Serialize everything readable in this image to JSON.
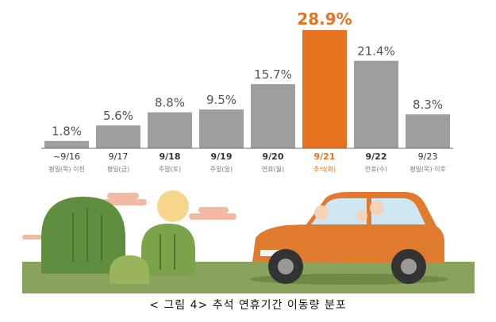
{
  "caption": "< 그림 4> 추석 연휴기간 이동량 분포",
  "colors": {
    "bar": "#9e9e9e",
    "highlight": "#e8731e",
    "pct_text": "#555555",
    "label_text": "#333333",
    "sub_text": "#777777",
    "highlight_text": "#e8731e",
    "baseline": "#6b6b6b"
  },
  "chart_data": {
    "type": "bar",
    "categories": [
      "~9/16",
      "9/17",
      "9/18",
      "9/19",
      "9/20",
      "9/21",
      "9/22",
      "9/23"
    ],
    "sublabels": [
      "평일(목) 이전",
      "평일(금)",
      "주말(토)",
      "주말(일)",
      "연휴(월)",
      "추석(화)",
      "연휴(수)",
      "평일(목) 이후"
    ],
    "values": [
      1.8,
      5.6,
      8.8,
      9.5,
      15.7,
      28.9,
      21.4,
      8.3
    ],
    "value_labels": [
      "1.8%",
      "5.6%",
      "8.8%",
      "9.5%",
      "15.7%",
      "28.9%",
      "21.4%",
      "8.3%"
    ],
    "highlight_index": 5,
    "bold_labels": [
      false,
      false,
      true,
      true,
      true,
      true,
      true,
      false
    ],
    "ylim": [
      0,
      28.9
    ],
    "title": "",
    "xlabel": "",
    "ylabel": "",
    "grid": false,
    "legend": "none"
  },
  "illustration": {
    "items": [
      "sun",
      "clouds",
      "hills",
      "car",
      "family",
      "ground"
    ]
  }
}
